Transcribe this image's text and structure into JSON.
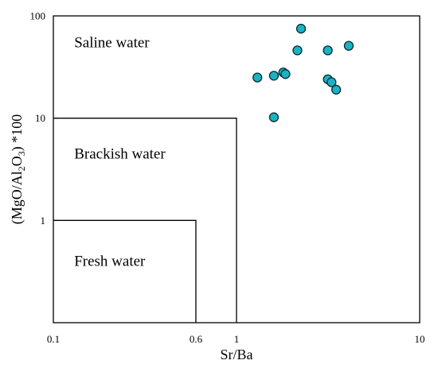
{
  "chart_data": {
    "type": "scatter",
    "xlabel": "Sr/Ba",
    "ylabel_parts": [
      "(MgO/Al",
      "2",
      "O",
      "3",
      ") *100"
    ],
    "x_scale": "log",
    "y_scale": "log",
    "xlim": [
      0.1,
      10
    ],
    "ylim": [
      0.1,
      100
    ],
    "x_ticks": [
      {
        "value": 0.1,
        "label": "0.1"
      },
      {
        "value": 0.6,
        "label": "0.6"
      },
      {
        "value": 1,
        "label": "1"
      },
      {
        "value": 10,
        "label": "10"
      }
    ],
    "y_ticks": [
      {
        "value": 1,
        "label": "1"
      },
      {
        "value": 10,
        "label": "10"
      },
      {
        "value": 100,
        "label": "100"
      }
    ],
    "regions": [
      {
        "label": "Saline water",
        "x_max": 10,
        "y_max": 100,
        "anchor": [
          0.13,
          55
        ]
      },
      {
        "label": "Brackish water",
        "x_max": 1,
        "y_max": 10,
        "anchor": [
          0.13,
          4.5
        ]
      },
      {
        "label": "Fresh water",
        "x_max": 0.6,
        "y_max": 1,
        "anchor": [
          0.13,
          0.4
        ]
      }
    ],
    "marker_color": "#1ab3c4",
    "marker_edge_color": "#0a2a30",
    "points": [
      {
        "x": 2.25,
        "y": 75
      },
      {
        "x": 4.1,
        "y": 51
      },
      {
        "x": 2.15,
        "y": 46
      },
      {
        "x": 3.15,
        "y": 46
      },
      {
        "x": 1.8,
        "y": 28
      },
      {
        "x": 1.85,
        "y": 27
      },
      {
        "x": 1.6,
        "y": 26
      },
      {
        "x": 1.3,
        "y": 25
      },
      {
        "x": 3.15,
        "y": 24
      },
      {
        "x": 3.3,
        "y": 22.5
      },
      {
        "x": 3.5,
        "y": 19
      },
      {
        "x": 1.6,
        "y": 10.2
      }
    ],
    "grid": false,
    "legend": "none"
  }
}
